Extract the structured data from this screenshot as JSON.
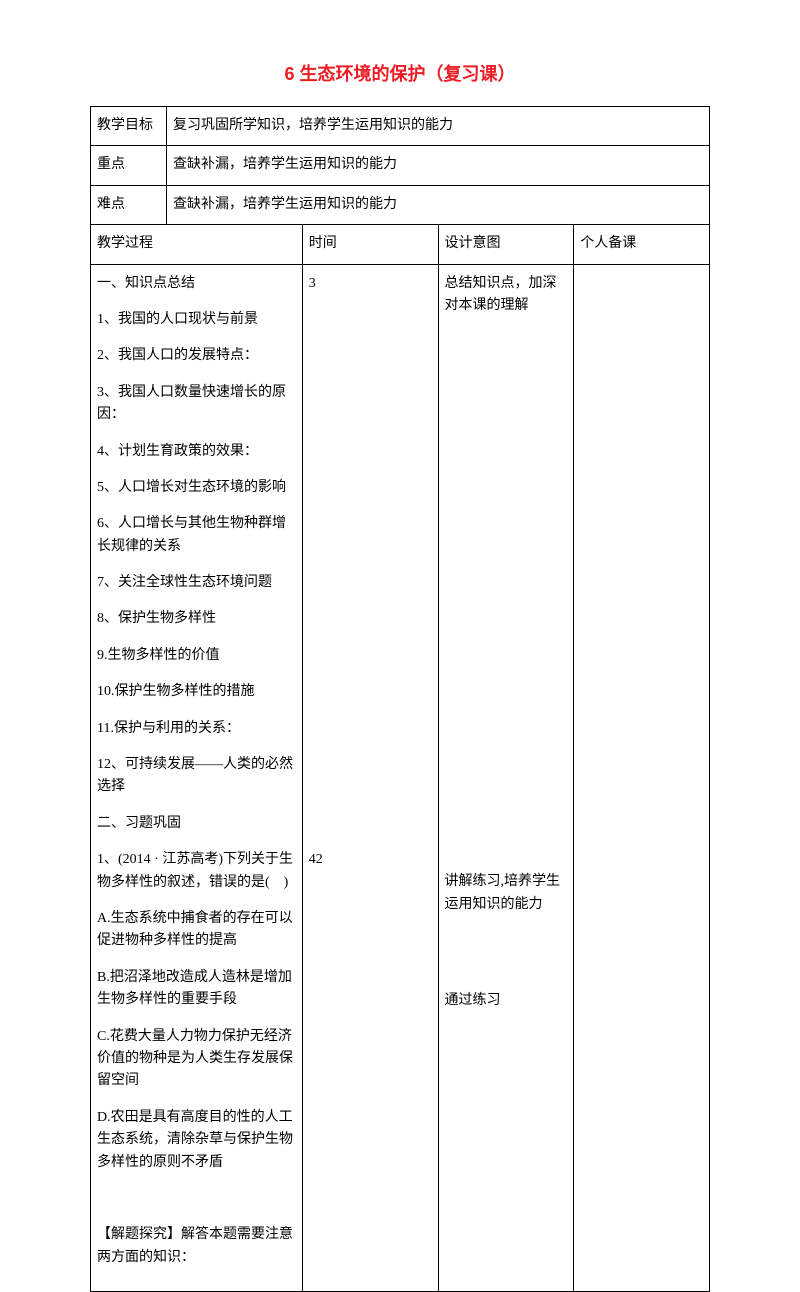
{
  "doc": {
    "title": "6 生态环境的保护（复习课）",
    "rows": {
      "goal_label": "教学目标",
      "goal_text": "复习巩固所学知识，培养学生运用知识的能力",
      "focus_label": "重点",
      "focus_text": "查缺补漏，培养学生运用知识的能力",
      "difficulty_label": "难点",
      "difficulty_text": "查缺补漏，培养学生运用知识的能力",
      "process_label": "教学过程",
      "time_label": "时间",
      "intent_label": "设计意图",
      "notes_label": "个人备课"
    },
    "process": {
      "p1": "一、知识点总结",
      "p2": "1、我国的人口现状与前景",
      "p3": "2、我国人口的发展特点：",
      "p4": "3、我国人口数量快速增长的原因：",
      "p5": "4、计划生育政策的效果：",
      "p6": "5、人口增长对生态环境的影响",
      "p7": "6、人口增长与其他生物种群增长规律的关系",
      "p8": "7、关注全球性生态环境问题",
      "p9": "8、保护生物多样性",
      "p10": "9.生物多样性的价值",
      "p11": "10.保护生物多样性的措施",
      "p12": "11.保护与利用的关系：",
      "p13": "12、可持续发展——人类的必然选择",
      "p14": "二、习题巩固",
      "p15": "1、(2014 · 江苏高考)下列关于生物多样性的叙述，错误的是(　)",
      "p16": "A.生态系统中捕食者的存在可以促进物种多样性的提高",
      "p17": "B.把沼泽地改造成人造林是增加生物多样性的重要手段",
      "p18": "C.花费大量人力物力保护无经济价值的物种是为人类生存发展保留空间",
      "p19": "D.农田是具有高度目的性的人工生态系统，清除杂草与保护生物多样性的原则不矛盾",
      "p20": "【解题探究】解答本题需要注意两方面的知识："
    },
    "time": {
      "t1": "3",
      "t2": "42"
    },
    "intent": {
      "i1": "总结知识点，加深对本课的理解",
      "i2": "讲解练习,培养学生运用知识的能力",
      "i3": "通过练习"
    }
  }
}
